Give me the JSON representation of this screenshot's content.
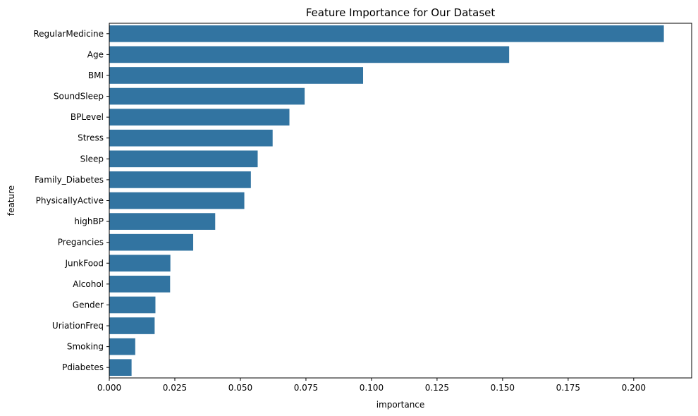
{
  "chart_data": {
    "type": "bar",
    "orientation": "horizontal",
    "title": "Feature Importance for Our Dataset",
    "xlabel": "importance",
    "ylabel": "feature",
    "categories": [
      "RegularMedicine",
      "Age",
      "BMI",
      "SoundSleep",
      "BPLevel",
      "Stress",
      "Sleep",
      "Family_Diabetes",
      "PhysicallyActive",
      "highBP",
      "Pregancies",
      "JunkFood",
      "Alcohol",
      "Gender",
      "UriationFreq",
      "Smoking",
      "Pdiabetes"
    ],
    "values": [
      0.2115,
      0.1525,
      0.0968,
      0.0745,
      0.0687,
      0.0623,
      0.0566,
      0.054,
      0.0515,
      0.0404,
      0.032,
      0.0233,
      0.0232,
      0.0176,
      0.0173,
      0.0099,
      0.0085
    ],
    "xlim": [
      0,
      0.2221
    ],
    "xticks": [
      "0.000",
      "0.025",
      "0.050",
      "0.075",
      "0.100",
      "0.125",
      "0.150",
      "0.175",
      "0.200"
    ],
    "grid": false,
    "bar_color": "#3274a1"
  }
}
